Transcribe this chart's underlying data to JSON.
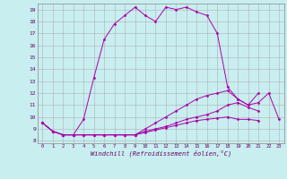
{
  "xlabel": "Windchill (Refroidissement éolien,°C)",
  "bg_color": "#c8eef0",
  "grid_color": "#b0b0b0",
  "line_color": "#aa00aa",
  "xmin": -0.5,
  "xmax": 23.5,
  "ymin": 7.8,
  "ymax": 19.5,
  "series": [
    [
      9.5,
      8.8,
      8.5,
      8.5,
      9.8,
      13.3,
      16.5,
      17.8,
      18.5,
      19.2,
      18.5,
      18.0,
      19.2,
      19.0,
      19.2,
      18.8,
      18.5,
      17.0,
      12.5,
      11.5,
      11.0,
      12.0,
      null,
      null
    ],
    [
      9.5,
      8.8,
      8.5,
      8.5,
      8.5,
      8.5,
      8.5,
      8.5,
      8.5,
      8.5,
      9.0,
      9.5,
      10.0,
      10.5,
      11.0,
      11.5,
      11.8,
      12.0,
      12.2,
      11.5,
      11.0,
      11.2,
      12.0,
      9.8
    ],
    [
      9.5,
      8.8,
      8.5,
      8.5,
      8.5,
      8.5,
      8.5,
      8.5,
      8.5,
      8.5,
      8.8,
      9.0,
      9.2,
      9.5,
      9.8,
      10.0,
      10.2,
      10.5,
      11.0,
      11.2,
      10.8,
      10.5,
      null,
      null
    ],
    [
      9.5,
      8.8,
      8.5,
      8.5,
      8.5,
      8.5,
      8.5,
      8.5,
      8.5,
      8.5,
      8.7,
      8.9,
      9.1,
      9.3,
      9.5,
      9.7,
      9.8,
      9.9,
      10.0,
      9.8,
      9.8,
      9.7,
      null,
      null
    ]
  ],
  "yticks": [
    8,
    9,
    10,
    11,
    12,
    13,
    14,
    15,
    16,
    17,
    18,
    19
  ],
  "xticks": [
    0,
    1,
    2,
    3,
    4,
    5,
    6,
    7,
    8,
    9,
    10,
    11,
    12,
    13,
    14,
    15,
    16,
    17,
    18,
    19,
    20,
    21,
    22,
    23
  ]
}
